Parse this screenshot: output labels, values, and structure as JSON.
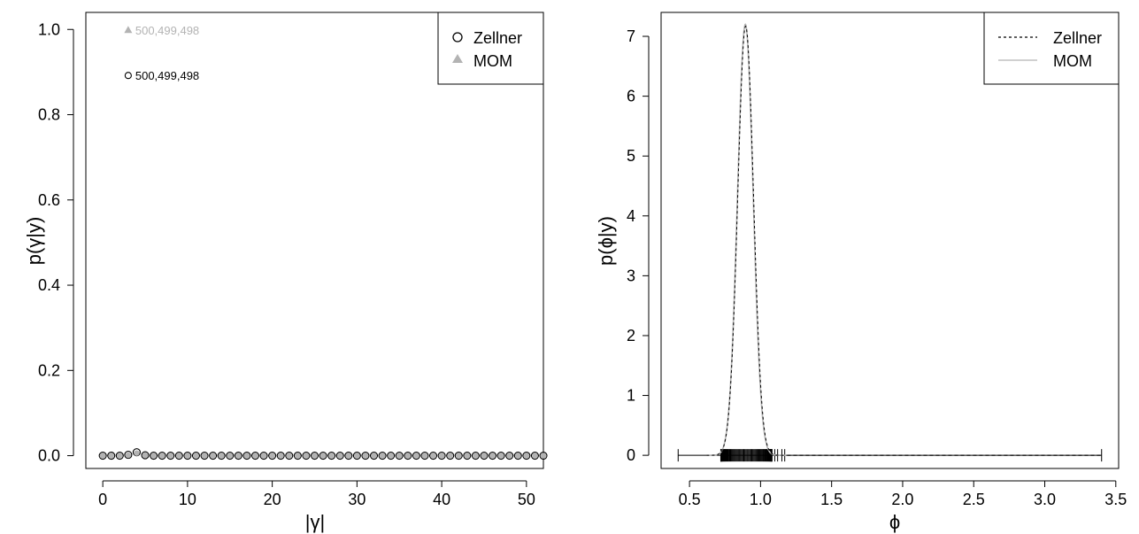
{
  "chart_data": [
    {
      "type": "scatter",
      "xlabel": "|γ|",
      "ylabel": "p(γ|y)",
      "xlim": [
        -2,
        52
      ],
      "ylim": [
        -0.03,
        1.04
      ],
      "xticks": [
        0,
        10,
        20,
        30,
        40,
        50
      ],
      "xtick_labels": [
        "0",
        "10",
        "20",
        "30",
        "40",
        "50"
      ],
      "yticks": [
        0.0,
        0.2,
        0.4,
        0.6,
        0.8,
        1.0
      ],
      "ytick_labels": [
        "0.0",
        "0.2",
        "0.4",
        "0.6",
        "0.8",
        "1.0"
      ],
      "grid": false,
      "legend_position": "top-right",
      "series": [
        {
          "name": "Zellner",
          "marker": "open-circle",
          "color": "#000000",
          "x": [
            0,
            1,
            2,
            3,
            4,
            5,
            6,
            7,
            8,
            9,
            10,
            11,
            12,
            13,
            14,
            15,
            16,
            17,
            18,
            19,
            20,
            21,
            22,
            23,
            24,
            25,
            26,
            27,
            28,
            29,
            30,
            31,
            32,
            33,
            34,
            35,
            36,
            37,
            38,
            39,
            40,
            41,
            42,
            43,
            44,
            45,
            46,
            47,
            48,
            49,
            50,
            51,
            52
          ],
          "y": [
            0,
            0,
            0,
            0.002,
            0.008,
            0.001,
            0,
            0,
            0,
            0,
            0,
            0,
            0,
            0,
            0,
            0,
            0,
            0,
            0,
            0,
            0,
            0,
            0,
            0,
            0,
            0,
            0,
            0,
            0,
            0,
            0,
            0,
            0,
            0,
            0,
            0,
            0,
            0,
            0,
            0,
            0,
            0,
            0,
            0,
            0,
            0,
            0,
            0,
            0,
            0,
            0,
            0,
            0
          ]
        },
        {
          "name": "MOM",
          "marker": "filled-triangle",
          "color": "#b3b3b3",
          "x": [
            0,
            1,
            2,
            3,
            4,
            5,
            6,
            7,
            8,
            9,
            10,
            11,
            12,
            13,
            14,
            15,
            16,
            17,
            18,
            19,
            20,
            21,
            22,
            23,
            24,
            25,
            26,
            27,
            28,
            29,
            30,
            31,
            32,
            33,
            34,
            35,
            36,
            37,
            38,
            39,
            40,
            41,
            42,
            43,
            44,
            45,
            46,
            47,
            48,
            49,
            50,
            51,
            52
          ],
          "y": [
            0,
            0,
            0,
            0.001,
            0.006,
            0.001,
            0,
            0,
            0,
            0,
            0,
            0,
            0,
            0,
            0,
            0,
            0,
            0,
            0,
            0,
            0,
            0,
            0,
            0,
            0,
            0,
            0,
            0,
            0,
            0,
            0,
            0,
            0,
            0,
            0,
            0,
            0,
            0,
            0,
            0,
            0,
            0,
            0,
            0,
            0,
            0,
            0,
            0,
            0,
            0,
            0,
            0,
            0
          ]
        }
      ],
      "top_models": [
        {
          "series": "MOM",
          "x": 3,
          "y": 0.998,
          "label": "500,499,498",
          "color": "#b3b3b3",
          "marker": "filled-triangle"
        },
        {
          "series": "Zellner",
          "x": 3,
          "y": 0.892,
          "label": "500,499,498",
          "color": "#000000",
          "marker": "open-circle"
        }
      ]
    },
    {
      "type": "line",
      "xlabel": "ϕ",
      "ylabel": "p(ϕ|y)",
      "xlim": [
        0.3,
        3.52
      ],
      "ylim": [
        -0.22,
        7.4
      ],
      "xticks": [
        0.5,
        1.0,
        1.5,
        2.0,
        2.5,
        3.0,
        3.5
      ],
      "xtick_labels": [
        "0.5",
        "1.0",
        "1.5",
        "2.0",
        "2.5",
        "3.0",
        "3.5"
      ],
      "yticks": [
        0,
        1,
        2,
        3,
        4,
        5,
        6,
        7
      ],
      "ytick_labels": [
        "0",
        "1",
        "2",
        "3",
        "4",
        "5",
        "6",
        "7"
      ],
      "grid": false,
      "legend_position": "top-right",
      "series": [
        {
          "name": "Zellner",
          "style": "dashed",
          "color": "#000000",
          "density": {
            "mean": 0.895,
            "sd": 0.0555,
            "peak": 7.17
          }
        },
        {
          "name": "MOM",
          "style": "solid",
          "color": "#b3b3b3",
          "density": {
            "mean": 0.893,
            "sd": 0.055,
            "peak": 7.2
          }
        }
      ],
      "range_line": {
        "from": 0.42,
        "to": 3.4
      },
      "rug": {
        "dense_from": 0.72,
        "dense_to": 1.08,
        "extra": [
          0.42,
          1.1,
          1.12,
          1.15,
          1.17,
          3.4
        ]
      }
    }
  ]
}
